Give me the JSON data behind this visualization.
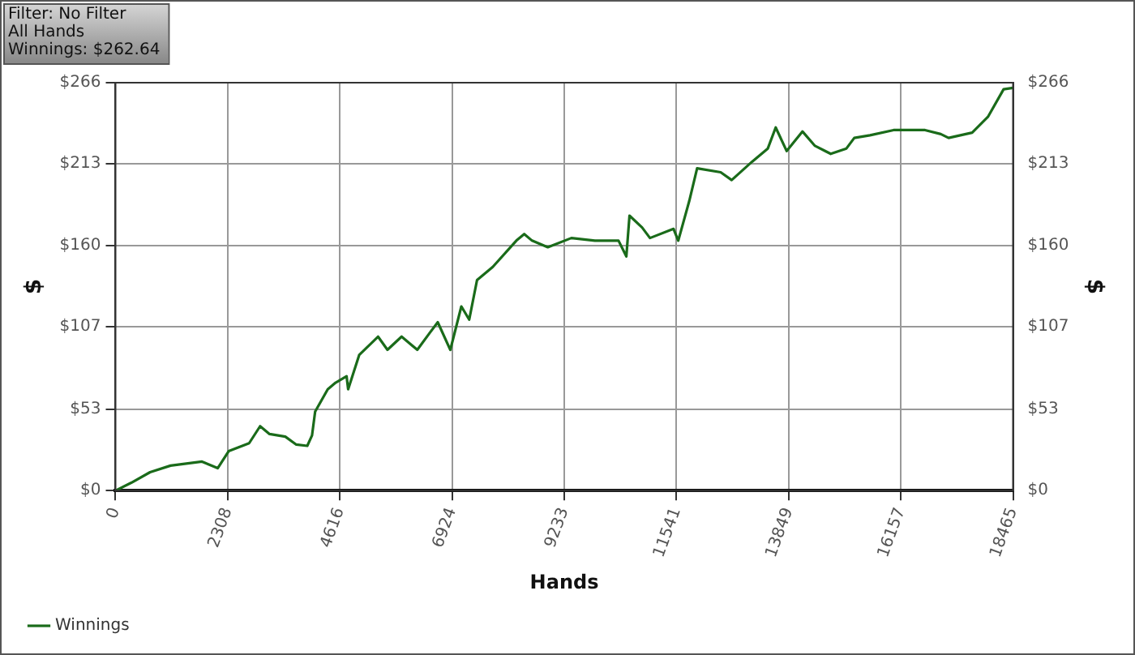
{
  "chart_data": {
    "type": "line",
    "xlabel": "Hands",
    "ylabel": "$",
    "y2label": "$",
    "annotations": [
      "Filter: No Filter",
      "All Hands",
      "Winnings: $262.64"
    ],
    "x": [
      0,
      323,
      711,
      1132,
      1779,
      2102,
      2328,
      2749,
      2975,
      3169,
      3493,
      3719,
      3945,
      4043,
      4107,
      4366,
      4528,
      4754,
      4786,
      5013,
      5401,
      5595,
      5886,
      6209,
      6468,
      6630,
      6888,
      7115,
      7277,
      7438,
      7762,
      8247,
      8409,
      8570,
      8894,
      9379,
      9864,
      10349,
      10510,
      10575,
      10834,
      10996,
      11481,
      11578,
      11804,
      11966,
      12451,
      12677,
      13098,
      13421,
      13583,
      13809,
      14133,
      14391,
      14715,
      15038,
      15200,
      15523,
      16008,
      16655,
      16979,
      17140,
      17625,
      17949,
      18272,
      18465
    ],
    "series": [
      {
        "name": "Winnings",
        "color": "#1a6b1a",
        "values": [
          0,
          5.1,
          12.0,
          16.3,
          18.9,
          14.6,
          25.7,
          30.9,
          42.0,
          36.9,
          35.2,
          30.0,
          29.2,
          36.0,
          51.5,
          66.1,
          70.4,
          74.6,
          66.1,
          88.4,
          100.4,
          91.8,
          100.4,
          91.8,
          103.0,
          109.8,
          91.8,
          120.1,
          111.5,
          137.3,
          145.9,
          163.0,
          167.3,
          163.0,
          158.7,
          164.7,
          163.0,
          163.0,
          152.7,
          179.3,
          171.6,
          164.7,
          170.7,
          163.0,
          188.8,
          210.2,
          207.6,
          202.5,
          214.5,
          223.1,
          236.8,
          221.4,
          234.2,
          224.8,
          219.6,
          223.1,
          230.0,
          231.7,
          235.1,
          235.1,
          232.5,
          230.0,
          233.4,
          243.7,
          261.7,
          262.6
        ]
      }
    ],
    "xlim": [
      0,
      18465
    ],
    "xticks": [
      0,
      2308,
      4616,
      6924,
      9233,
      11541,
      13849,
      16157,
      18465
    ],
    "ylim": [
      0,
      266
    ],
    "yticks": [
      {
        "value": 0,
        "label": "$0"
      },
      {
        "value": 53,
        "label": "$53"
      },
      {
        "value": 107,
        "label": "$107"
      },
      {
        "value": 160,
        "label": "$160"
      },
      {
        "value": 213,
        "label": "$213"
      },
      {
        "value": 266,
        "label": "$266"
      }
    ],
    "y2lim": [
      0,
      266
    ],
    "y2ticks": [
      {
        "value": 0,
        "label": "$0"
      },
      {
        "value": 53,
        "label": "$53"
      },
      {
        "value": 107,
        "label": "$107"
      },
      {
        "value": 160,
        "label": "$160"
      },
      {
        "value": 213,
        "label": "$213"
      },
      {
        "value": 266,
        "label": "$266"
      }
    ],
    "grid": true,
    "legend": "bottom left",
    "marker": "none",
    "line_style": "solid"
  }
}
